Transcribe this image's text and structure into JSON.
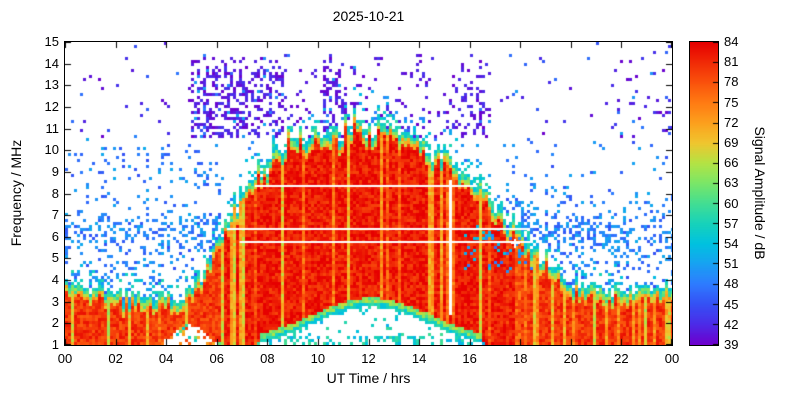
{
  "chart_data": {
    "type": "heatmap",
    "title": "2025-10-21",
    "xlabel": "UT Time / hrs",
    "ylabel": "Frequency / MHz",
    "colorbar_label": "Signal Amplitude / dB",
    "x_range": [
      0,
      24
    ],
    "y_range": [
      1,
      15
    ],
    "z_range": [
      39,
      84
    ],
    "x_tick_values": [
      0,
      2,
      4,
      6,
      8,
      10,
      12,
      14,
      16,
      18,
      20,
      22,
      24
    ],
    "x_tick_labels": [
      "00",
      "02",
      "04",
      "06",
      "08",
      "10",
      "12",
      "14",
      "16",
      "18",
      "20",
      "22",
      "00"
    ],
    "y_tick_values": [
      1,
      2,
      3,
      4,
      5,
      6,
      7,
      8,
      9,
      10,
      11,
      12,
      13,
      14,
      15
    ],
    "colorbar_tick_values": [
      39,
      42,
      45,
      48,
      51,
      54,
      57,
      60,
      63,
      66,
      69,
      72,
      75,
      78,
      81,
      84
    ],
    "colormap": [
      {
        "v": 39,
        "c": "#6e00cd"
      },
      {
        "v": 42,
        "c": "#4c2be8"
      },
      {
        "v": 45,
        "c": "#3551f5"
      },
      {
        "v": 48,
        "c": "#2e7bff"
      },
      {
        "v": 51,
        "c": "#18a2f2"
      },
      {
        "v": 54,
        "c": "#00c2e0"
      },
      {
        "v": 57,
        "c": "#17d2ba"
      },
      {
        "v": 60,
        "c": "#43de92"
      },
      {
        "v": 63,
        "c": "#7ae668"
      },
      {
        "v": 66,
        "c": "#b4e344"
      },
      {
        "v": 69,
        "c": "#f0c62f"
      },
      {
        "v": 72,
        "c": "#fca01d"
      },
      {
        "v": 75,
        "c": "#ff7b13"
      },
      {
        "v": 78,
        "c": "#fa520c"
      },
      {
        "v": 81,
        "c": "#f12a06"
      },
      {
        "v": 84,
        "c": "#e60000"
      }
    ],
    "spectrogram": {
      "seed": 20251021,
      "envelope_top_mhz": [
        [
          0,
          3.9
        ],
        [
          1,
          3.7
        ],
        [
          2,
          3.5
        ],
        [
          3,
          3.3
        ],
        [
          4,
          3.2
        ],
        [
          4.7,
          3.3
        ],
        [
          5.2,
          3.8
        ],
        [
          5.6,
          4.8
        ],
        [
          6,
          5.6
        ],
        [
          6.5,
          7.0
        ],
        [
          7,
          8.1
        ],
        [
          7.5,
          8.9
        ],
        [
          8,
          9.6
        ],
        [
          8.5,
          10.1
        ],
        [
          9,
          10.4
        ],
        [
          9.5,
          10.7
        ],
        [
          10,
          11.0
        ],
        [
          10.5,
          11.3
        ],
        [
          11,
          11.5
        ],
        [
          11.5,
          11.2
        ],
        [
          12,
          11.0
        ],
        [
          12.5,
          10.9
        ],
        [
          13,
          10.8
        ],
        [
          13.5,
          10.7
        ],
        [
          14,
          10.5
        ],
        [
          14.5,
          10.2
        ],
        [
          15,
          9.8
        ],
        [
          15.5,
          9.3
        ],
        [
          16,
          8.8
        ],
        [
          16.5,
          8.2
        ],
        [
          17,
          7.5
        ],
        [
          17.5,
          6.8
        ],
        [
          18,
          6.2
        ],
        [
          18.5,
          5.5
        ],
        [
          19,
          5.0
        ],
        [
          19.5,
          4.4
        ],
        [
          20,
          4.0
        ],
        [
          20.5,
          3.8
        ],
        [
          21,
          3.6
        ],
        [
          22,
          3.6
        ],
        [
          23,
          3.7
        ],
        [
          24,
          3.8
        ]
      ],
      "day_gap_bottom": {
        "center": 12.1,
        "sigma": 3.3,
        "amplitude": 2.0,
        "base": 1.0
      },
      "night_gap": {
        "center": 4.9,
        "sigma": 0.75,
        "amplitude": 1.0
      },
      "interference_lines_mhz": [
        {
          "f": 8.35,
          "t_start": 7.5,
          "t_end": 16.3
        },
        {
          "f": 6.35,
          "t_start": 6.4,
          "t_end": 18.3
        },
        {
          "f": 5.75,
          "t_start": 6.9,
          "t_end": 18.4
        }
      ],
      "marker_cross": {
        "t": 17.8,
        "f": 5.72
      },
      "interior_db": 82,
      "night_interior_db": 80,
      "noise_db": {
        "purple": [
          39,
          43
        ],
        "blue": [
          45,
          52
        ],
        "cyan": [
          53,
          59
        ]
      }
    }
  }
}
